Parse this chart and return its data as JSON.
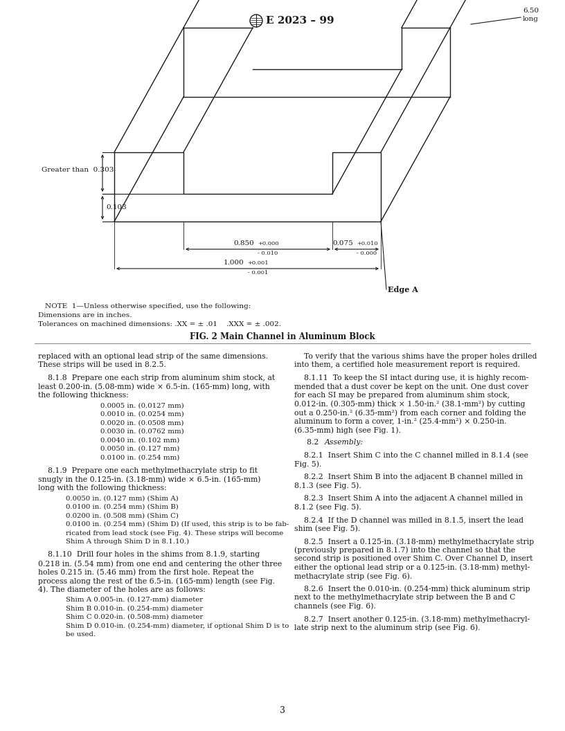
{
  "title": "E 2023 – 99",
  "fig_caption": "FIG. 2 Main Channel in Aluminum Block",
  "note_line1": "NOTE  1—Unless otherwise specified, use the following:",
  "note_line2": "Dimensions are in inches.",
  "note_line3": "Tolerances on machined dimensions: .XX = ± .01    .XXX = ± .002.",
  "label_greater": "Greater than  0.303",
  "label_0103": "0.103",
  "label_edge_a": "Edge A",
  "page_number": "3",
  "col1_list1": [
    "0.0005 in. (0.0127 mm)",
    "0.0010 in. (0.0254 mm)",
    "0.0020 in. (0.0508 mm)",
    "0.0030 in. (0.0762 mm)",
    "0.0040 in. (0.102 mm)",
    "0.0050 in. (0.127 mm)",
    "0.0100 in. (0.254 mm)"
  ],
  "col1_list2": [
    "0.0050 in. (0.127 mm) (Shim A)",
    "0.0100 in. (0.254 mm) (Shim B)",
    "0.0200 in. (0.508 mm) (Shim C)",
    "0.0100 in. (0.254 mm) (Shim D) (If used, this strip is to be fab-",
    "ricated from lead stock (see Fig. 4). These strips will become",
    "Shim A through Shim D in 8.1.10.)"
  ],
  "col1_list3": [
    "Shim A 0.005-in. (0.127-mm) diameter",
    "Shim B 0.010-in. (0.254-mm) diameter",
    "Shim C 0.020-in. (0.508-mm) diameter",
    "Shim D 0.010-in. (0.254-mm) diameter, if optional Shim D is to",
    "be used."
  ],
  "background_color": "#ffffff",
  "text_color": "#1a1a1a",
  "line_color": "#1a1a1a"
}
